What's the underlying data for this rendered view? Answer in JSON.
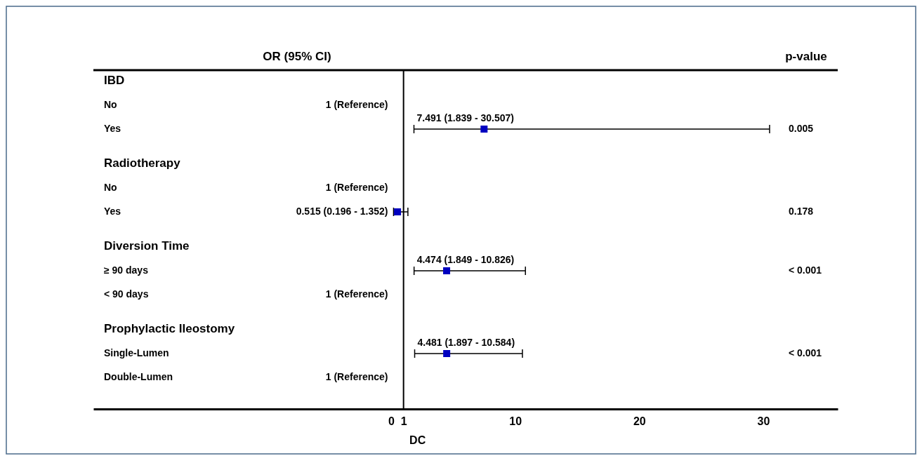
{
  "chart_data": {
    "type": "scatter",
    "orientation": "horizontal",
    "title": "OR (95% CI)",
    "xlabel": "DC",
    "categories": [
      "IBD",
      "No",
      "Yes",
      "Radiotherapy",
      "No",
      "Yes",
      "Diversion Time",
      "≥ 90 days",
      "< 90 days",
      "Prophylactic Ileostomy",
      "Single-Lumen",
      "Double-Lumen"
    ],
    "values": [
      null,
      null,
      7.491,
      null,
      null,
      0.515,
      null,
      4.474,
      null,
      null,
      4.481,
      null
    ],
    "errors": [
      null,
      null,
      [
        1.839,
        30.507
      ],
      null,
      null,
      [
        0.196,
        1.352
      ],
      null,
      [
        1.849,
        10.826
      ],
      null,
      null,
      [
        1.897,
        10.584
      ],
      null
    ],
    "value_labels": [
      null,
      "1 (Reference)",
      "7.491 (1.839 - 30.507)",
      null,
      "1 (Reference)",
      "0.515 (0.196 - 1.352)",
      null,
      "4.474 (1.849 - 10.826)",
      "1 (Reference)",
      null,
      "4.481 (1.897 - 10.584)",
      "1 (Reference)"
    ],
    "color": "#0000c0",
    "marker": "square",
    "xlim": [
      -24,
      36
    ],
    "xticks": [
      0,
      1,
      10,
      20,
      30
    ],
    "ref_lines": [
      {
        "axis": "x",
        "value": 1
      }
    ],
    "annotations": [
      "p-value",
      "0.005",
      "0.178",
      "< 0.001",
      "< 0.001"
    ]
  }
}
